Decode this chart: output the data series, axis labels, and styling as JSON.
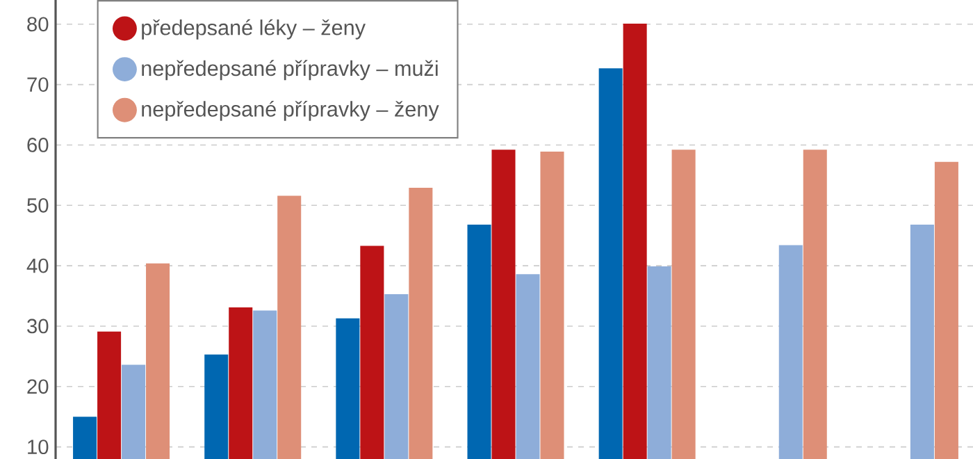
{
  "chart_data": {
    "type": "bar",
    "categories": [
      null,
      null,
      null,
      null,
      null,
      null,
      null
    ],
    "series": [
      {
        "color": "#0067b1",
        "values": [
          15,
          25.3,
          31.3,
          46.8,
          72.7,
          null,
          null
        ]
      },
      {
        "name": "předepsané léky – ženy",
        "color": "#bd1316",
        "values": [
          29.1,
          33.1,
          43.3,
          59.2,
          80.1,
          null,
          null
        ]
      },
      {
        "name": "nepředepsané přípravky – muži",
        "color": "#8eadd9",
        "values": [
          23.6,
          32.6,
          35.3,
          38.6,
          39.9,
          43.4,
          46.8
        ]
      },
      {
        "name": "nepředepsané přípravky – ženy",
        "color": "#de8f77",
        "values": [
          40.4,
          51.6,
          52.9,
          58.9,
          59.2,
          59.2,
          57.2
        ]
      }
    ],
    "ylim": [
      8,
      84
    ],
    "yticks": [
      10,
      20,
      30,
      40,
      50,
      60,
      70,
      80
    ],
    "grid": "y",
    "legend": "top left",
    "tick_labels": "y"
  }
}
